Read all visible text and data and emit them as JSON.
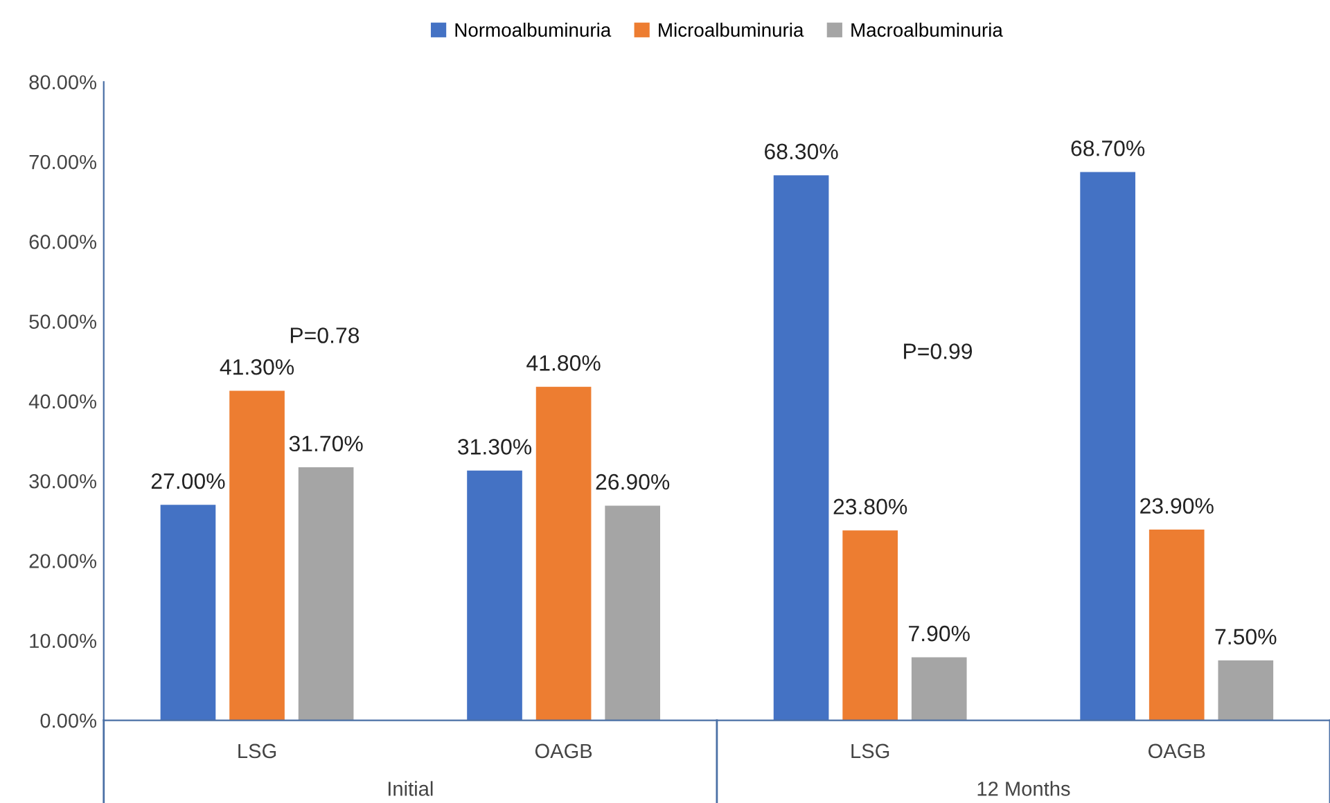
{
  "chart_data": {
    "type": "bar",
    "categories": [
      "LSG",
      "OAGB",
      "LSG",
      "OAGB"
    ],
    "series": [
      {
        "name": "Normoalbuminuria",
        "color": "#4472c4",
        "values": [
          27.0,
          31.3,
          68.3,
          68.7
        ],
        "value_labels": [
          "27.00%",
          "31.30%",
          "68.30%",
          "68.70%"
        ]
      },
      {
        "name": "Microalbuminuria",
        "color": "#ed7d31",
        "values": [
          41.3,
          41.8,
          23.8,
          23.9
        ],
        "value_labels": [
          "41.30%",
          "41.80%",
          "23.80%",
          "23.90%"
        ]
      },
      {
        "name": "Macroalbuminuria",
        "color": "#a5a5a5",
        "values": [
          31.7,
          26.9,
          7.9,
          7.5
        ],
        "value_labels": [
          "31.70%",
          "26.90%",
          "7.90%",
          "7.50%"
        ]
      }
    ],
    "ylim": [
      0,
      80
    ],
    "yticks": [
      {
        "value": 0,
        "label": "0.00%"
      },
      {
        "value": 10,
        "label": "10.00%"
      },
      {
        "value": 20,
        "label": "20.00%"
      },
      {
        "value": 30,
        "label": "30.00%"
      },
      {
        "value": 40,
        "label": "40.00%"
      },
      {
        "value": 50,
        "label": "50.00%"
      },
      {
        "value": 60,
        "label": "60.00%"
      },
      {
        "value": 70,
        "label": "70.00%"
      },
      {
        "value": 80,
        "label": "80.00%"
      }
    ],
    "annotations": [
      "P=0.78",
      "P=0.99",
      "Initial",
      "12 Months"
    ],
    "grid": false,
    "legend": "top"
  }
}
